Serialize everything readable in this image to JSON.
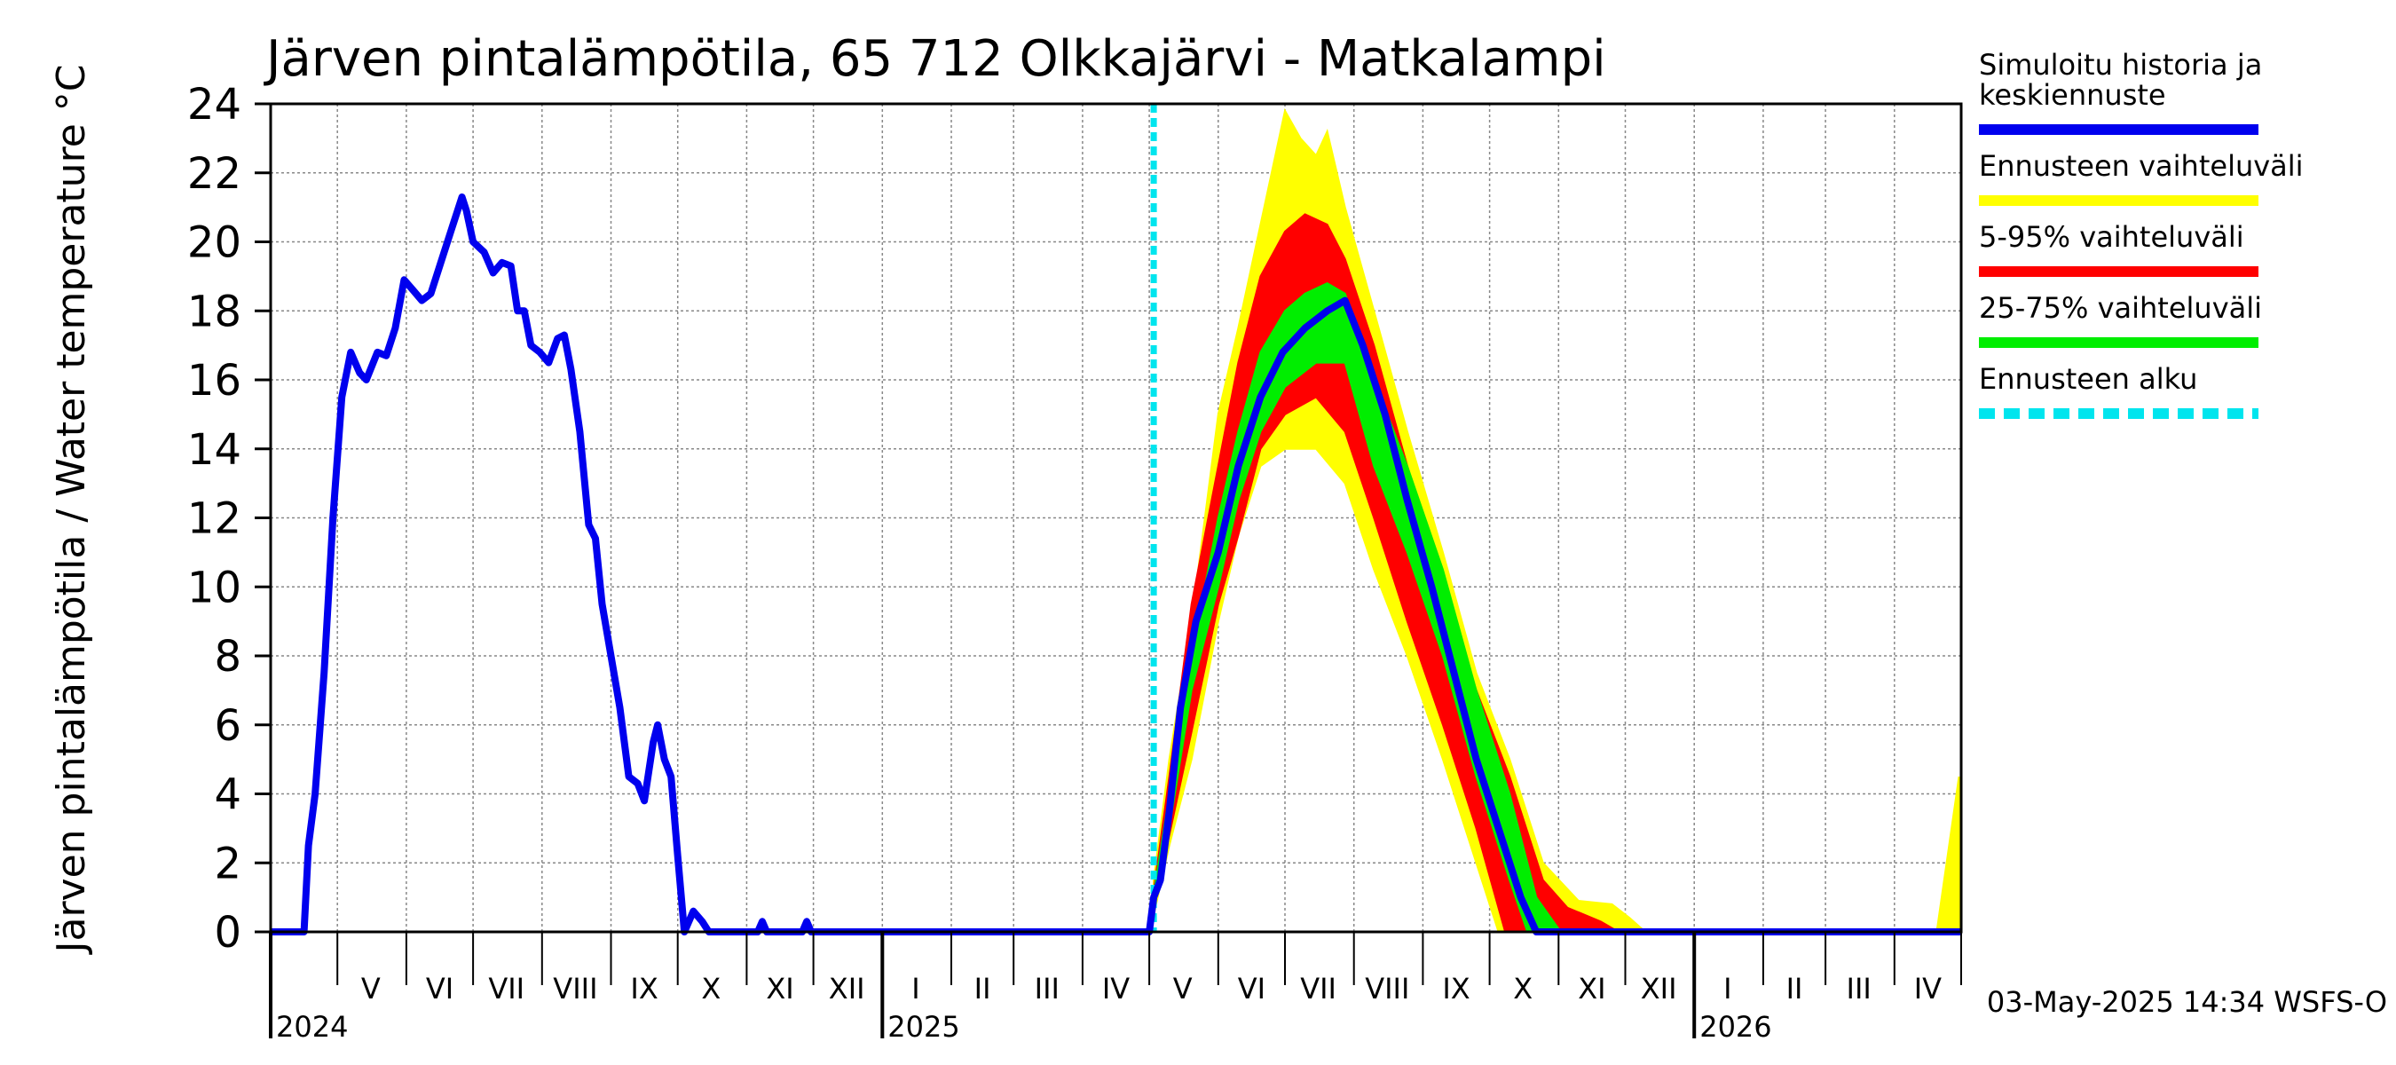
{
  "chart_data": {
    "type": "line",
    "title": "Järven pintalämpötila, 65 712 Olkkajärvi - Matkalampi",
    "ylabel": "Järven pintalämpötila / Water temperature °C",
    "ylim": [
      0,
      24
    ],
    "yticks": [
      0,
      2,
      4,
      6,
      8,
      10,
      12,
      14,
      16,
      18,
      20,
      22,
      24
    ],
    "xlim": [
      "2024-04-01",
      "2026-05-01"
    ],
    "month_labels": [
      {
        "label": "V",
        "date": "2024-05-16"
      },
      {
        "label": "VI",
        "date": "2024-06-16"
      },
      {
        "label": "VII",
        "date": "2024-07-16"
      },
      {
        "label": "VIII",
        "date": "2024-08-16"
      },
      {
        "label": "IX",
        "date": "2024-09-16"
      },
      {
        "label": "X",
        "date": "2024-10-16"
      },
      {
        "label": "XI",
        "date": "2024-11-16"
      },
      {
        "label": "XII",
        "date": "2024-12-16"
      },
      {
        "label": "I",
        "date": "2025-01-16"
      },
      {
        "label": "II",
        "date": "2025-02-15"
      },
      {
        "label": "III",
        "date": "2025-03-16"
      },
      {
        "label": "IV",
        "date": "2025-04-16"
      },
      {
        "label": "V",
        "date": "2025-05-16"
      },
      {
        "label": "VI",
        "date": "2025-06-16"
      },
      {
        "label": "VII",
        "date": "2025-07-16"
      },
      {
        "label": "VIII",
        "date": "2025-08-16"
      },
      {
        "label": "IX",
        "date": "2025-09-16"
      },
      {
        "label": "X",
        "date": "2025-10-16"
      },
      {
        "label": "XI",
        "date": "2025-11-16"
      },
      {
        "label": "XII",
        "date": "2025-12-16"
      },
      {
        "label": "I",
        "date": "2026-01-16"
      },
      {
        "label": "II",
        "date": "2026-02-15"
      },
      {
        "label": "III",
        "date": "2026-03-16"
      },
      {
        "label": "IV",
        "date": "2026-04-16"
      }
    ],
    "year_labels": [
      {
        "label": "2024",
        "date": "2024-04-01"
      },
      {
        "label": "2025",
        "date": "2025-01-01"
      },
      {
        "label": "2026",
        "date": "2026-01-01"
      }
    ],
    "forecast_start": "2025-05-03",
    "legend": [
      {
        "label": "Simuloitu historia ja keskiennuste",
        "color": "#0000ee",
        "style": "solid"
      },
      {
        "label": "Ennusteen vaihteluväli",
        "color": "#ffff00",
        "style": "solid"
      },
      {
        "label": "5-95% vaihteluväli",
        "color": "#ff0000",
        "style": "solid"
      },
      {
        "label": "25-75% vaihteluväli",
        "color": "#00ee00",
        "style": "solid"
      },
      {
        "label": "Ennusteen alku",
        "color": "#00e5ee",
        "style": "dashed"
      }
    ],
    "footer": "03-May-2025 14:34 WSFS-O",
    "series": [
      {
        "name": "Simuloitu historia ja keskiennuste",
        "color": "#0000ee",
        "points": [
          [
            "2024-04-01",
            0
          ],
          [
            "2024-04-16",
            0
          ],
          [
            "2024-04-18",
            2.5
          ],
          [
            "2024-04-21",
            4
          ],
          [
            "2024-04-25",
            7.5
          ],
          [
            "2024-04-29",
            12
          ],
          [
            "2024-05-03",
            15.5
          ],
          [
            "2024-05-07",
            16.8
          ],
          [
            "2024-05-11",
            16.2
          ],
          [
            "2024-05-14",
            16.0
          ],
          [
            "2024-05-19",
            16.8
          ],
          [
            "2024-05-23",
            16.7
          ],
          [
            "2024-05-27",
            17.5
          ],
          [
            "2024-05-31",
            18.9
          ],
          [
            "2024-06-04",
            18.6
          ],
          [
            "2024-06-08",
            18.3
          ],
          [
            "2024-06-12",
            18.5
          ],
          [
            "2024-06-17",
            19.5
          ],
          [
            "2024-06-21",
            20.3
          ],
          [
            "2024-06-26",
            21.3
          ],
          [
            "2024-06-28",
            20.9
          ],
          [
            "2024-07-01",
            20.0
          ],
          [
            "2024-07-06",
            19.7
          ],
          [
            "2024-07-10",
            19.1
          ],
          [
            "2024-07-14",
            19.4
          ],
          [
            "2024-07-18",
            19.3
          ],
          [
            "2024-07-21",
            18.0
          ],
          [
            "2024-07-24",
            18.0
          ],
          [
            "2024-07-27",
            17.0
          ],
          [
            "2024-07-31",
            16.8
          ],
          [
            "2024-08-04",
            16.5
          ],
          [
            "2024-08-08",
            17.2
          ],
          [
            "2024-08-11",
            17.3
          ],
          [
            "2024-08-14",
            16.3
          ],
          [
            "2024-08-18",
            14.5
          ],
          [
            "2024-08-22",
            11.8
          ],
          [
            "2024-08-25",
            11.4
          ],
          [
            "2024-08-28",
            9.5
          ],
          [
            "2024-09-01",
            8.0
          ],
          [
            "2024-09-05",
            6.5
          ],
          [
            "2024-09-09",
            4.5
          ],
          [
            "2024-09-13",
            4.3
          ],
          [
            "2024-09-16",
            3.8
          ],
          [
            "2024-09-20",
            5.5
          ],
          [
            "2024-09-22",
            6.0
          ],
          [
            "2024-09-25",
            5.0
          ],
          [
            "2024-09-28",
            4.5
          ],
          [
            "2024-10-01",
            2.2
          ],
          [
            "2024-10-04",
            0
          ],
          [
            "2024-10-08",
            0.6
          ],
          [
            "2024-10-12",
            0.3
          ],
          [
            "2024-10-15",
            0
          ],
          [
            "2024-11-06",
            0
          ],
          [
            "2024-11-08",
            0.3
          ],
          [
            "2024-11-10",
            0
          ],
          [
            "2024-11-26",
            0
          ],
          [
            "2024-11-28",
            0.3
          ],
          [
            "2024-11-30",
            0
          ],
          [
            "2025-05-01",
            0
          ],
          [
            "2025-05-03",
            1.0
          ],
          [
            "2025-05-06",
            1.5
          ],
          [
            "2025-05-10",
            3.5
          ],
          [
            "2025-05-15",
            6.5
          ],
          [
            "2025-05-22",
            9.0
          ],
          [
            "2025-06-01",
            11.0
          ],
          [
            "2025-06-10",
            13.5
          ],
          [
            "2025-06-20",
            15.5
          ],
          [
            "2025-06-30",
            16.8
          ],
          [
            "2025-07-10",
            17.5
          ],
          [
            "2025-07-20",
            18.0
          ],
          [
            "2025-07-28",
            18.3
          ],
          [
            "2025-08-05",
            17.0
          ],
          [
            "2025-08-15",
            15.0
          ],
          [
            "2025-08-25",
            12.5
          ],
          [
            "2025-09-05",
            10.0
          ],
          [
            "2025-09-15",
            7.5
          ],
          [
            "2025-09-25",
            5.0
          ],
          [
            "2025-10-05",
            3.0
          ],
          [
            "2025-10-15",
            1.0
          ],
          [
            "2025-10-22",
            0
          ],
          [
            "2026-05-01",
            0
          ]
        ]
      },
      {
        "name": "Ennusteen vaihteluväli",
        "color": "#ffff00",
        "upper": [
          [
            "2025-05-03",
            1.5
          ],
          [
            "2025-05-10",
            5.0
          ],
          [
            "2025-05-20",
            9.0
          ],
          [
            "2025-06-01",
            15.0
          ],
          [
            "2025-06-10",
            17.5
          ],
          [
            "2025-06-20",
            20.5
          ],
          [
            "2025-07-01",
            23.8
          ],
          [
            "2025-07-08",
            23.0
          ],
          [
            "2025-07-15",
            22.5
          ],
          [
            "2025-07-20",
            23.2
          ],
          [
            "2025-07-28",
            21.0
          ],
          [
            "2025-08-10",
            18.0
          ],
          [
            "2025-08-25",
            14.5
          ],
          [
            "2025-09-10",
            11.0
          ],
          [
            "2025-09-25",
            7.5
          ],
          [
            "2025-10-10",
            5.0
          ],
          [
            "2025-10-25",
            2.0
          ],
          [
            "2025-11-10",
            0.9
          ],
          [
            "2025-11-25",
            0.8
          ],
          [
            "2025-12-03",
            0.4
          ],
          [
            "2025-12-10",
            0
          ],
          [
            "2026-04-20",
            0
          ],
          [
            "2026-04-30",
            4.5
          ]
        ],
        "lower": [
          [
            "2025-05-03",
            0.5
          ],
          [
            "2025-05-10",
            2.5
          ],
          [
            "2025-05-20",
            5.0
          ],
          [
            "2025-06-01",
            9.0
          ],
          [
            "2025-06-10",
            11.5
          ],
          [
            "2025-06-20",
            13.5
          ],
          [
            "2025-07-01",
            14.0
          ],
          [
            "2025-07-15",
            14.0
          ],
          [
            "2025-07-28",
            13.0
          ],
          [
            "2025-08-10",
            10.5
          ],
          [
            "2025-08-25",
            8.0
          ],
          [
            "2025-09-10",
            5.0
          ],
          [
            "2025-09-25",
            2.0
          ],
          [
            "2025-10-05",
            0
          ],
          [
            "2026-04-30",
            0
          ]
        ]
      },
      {
        "name": "5-95% vaihteluväli",
        "color": "#ff0000",
        "upper": [
          [
            "2025-05-03",
            1.2
          ],
          [
            "2025-05-10",
            4.5
          ],
          [
            "2025-05-20",
            9.5
          ],
          [
            "2025-06-01",
            13.5
          ],
          [
            "2025-06-10",
            16.5
          ],
          [
            "2025-06-20",
            19.0
          ],
          [
            "2025-07-01",
            20.3
          ],
          [
            "2025-07-10",
            20.8
          ],
          [
            "2025-07-20",
            20.5
          ],
          [
            "2025-07-28",
            19.5
          ],
          [
            "2025-08-10",
            17.0
          ],
          [
            "2025-08-25",
            13.5
          ],
          [
            "2025-09-10",
            10.0
          ],
          [
            "2025-09-25",
            7.0
          ],
          [
            "2025-10-10",
            4.5
          ],
          [
            "2025-10-25",
            1.5
          ],
          [
            "2025-11-05",
            0.7
          ],
          [
            "2025-11-20",
            0.3
          ],
          [
            "2025-11-28",
            0
          ]
        ],
        "lower": [
          [
            "2025-05-03",
            0.8
          ],
          [
            "2025-05-10",
            2.8
          ],
          [
            "2025-05-20",
            5.8
          ],
          [
            "2025-06-01",
            9.5
          ],
          [
            "2025-06-10",
            11.5
          ],
          [
            "2025-06-20",
            14.0
          ],
          [
            "2025-07-01",
            15.0
          ],
          [
            "2025-07-15",
            15.5
          ],
          [
            "2025-07-28",
            14.5
          ],
          [
            "2025-08-10",
            12.0
          ],
          [
            "2025-08-25",
            9.0
          ],
          [
            "2025-09-10",
            6.0
          ],
          [
            "2025-09-25",
            3.0
          ],
          [
            "2025-10-08",
            0
          ],
          [
            "2025-11-28",
            0
          ]
        ]
      },
      {
        "name": "25-75% vaihteluväli",
        "color": "#00ee00",
        "upper": [
          [
            "2025-05-03",
            1.1
          ],
          [
            "2025-05-10",
            4.0
          ],
          [
            "2025-05-20",
            8.0
          ],
          [
            "2025-06-01",
            12.0
          ],
          [
            "2025-06-10",
            14.5
          ],
          [
            "2025-06-20",
            16.8
          ],
          [
            "2025-07-01",
            18.0
          ],
          [
            "2025-07-10",
            18.5
          ],
          [
            "2025-07-20",
            18.8
          ],
          [
            "2025-07-28",
            18.5
          ],
          [
            "2025-08-10",
            16.0
          ],
          [
            "2025-08-25",
            13.5
          ],
          [
            "2025-09-10",
            10.5
          ],
          [
            "2025-09-25",
            7.0
          ],
          [
            "2025-10-10",
            4.0
          ],
          [
            "2025-10-22",
            1.0
          ],
          [
            "2025-11-02",
            0
          ]
        ],
        "lower": [
          [
            "2025-05-03",
            0.9
          ],
          [
            "2025-05-10",
            3.0
          ],
          [
            "2025-05-20",
            7.0
          ],
          [
            "2025-06-01",
            10.0
          ],
          [
            "2025-06-10",
            12.5
          ],
          [
            "2025-06-20",
            14.5
          ],
          [
            "2025-07-01",
            15.8
          ],
          [
            "2025-07-15",
            16.5
          ],
          [
            "2025-07-28",
            16.5
          ],
          [
            "2025-08-10",
            13.5
          ],
          [
            "2025-08-25",
            11.0
          ],
          [
            "2025-09-10",
            8.0
          ],
          [
            "2025-09-25",
            4.5
          ],
          [
            "2025-10-10",
            1.5
          ],
          [
            "2025-10-18",
            0
          ],
          [
            "2025-11-02",
            0
          ]
        ]
      }
    ]
  }
}
